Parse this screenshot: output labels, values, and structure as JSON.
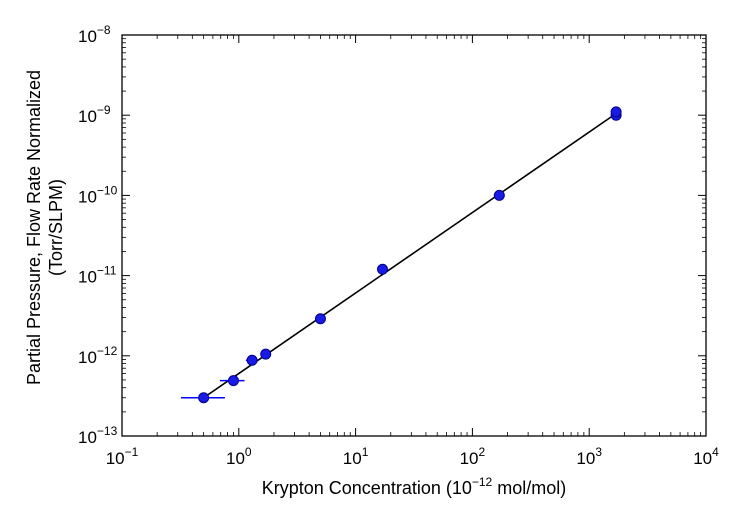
{
  "chart_data": {
    "type": "scatter",
    "xscale": "log",
    "yscale": "log",
    "xlim": [
      0.1,
      10000
    ],
    "ylim": [
      1e-13,
      1e-08
    ],
    "xlabel": {
      "prefix": "Krypton Concentration (10",
      "sup": "−12",
      "suffix": " mol/mol)"
    },
    "ylabel": {
      "line1": "Partial Pressure, Flow Rate Normalized",
      "line2": "(Torr/SLPM)"
    },
    "x_ticks": [
      {
        "value": 0.1,
        "base": "10",
        "exp": "−1"
      },
      {
        "value": 1,
        "base": "10",
        "exp": "0"
      },
      {
        "value": 10,
        "base": "10",
        "exp": "1"
      },
      {
        "value": 100,
        "base": "10",
        "exp": "2"
      },
      {
        "value": 1000,
        "base": "10",
        "exp": "3"
      },
      {
        "value": 10000,
        "base": "10",
        "exp": "4"
      }
    ],
    "y_ticks": [
      {
        "value": 1e-13,
        "base": "10",
        "exp": "−13"
      },
      {
        "value": 1e-12,
        "base": "10",
        "exp": "−12"
      },
      {
        "value": 1e-11,
        "base": "10",
        "exp": "−11"
      },
      {
        "value": 1e-10,
        "base": "10",
        "exp": "−10"
      },
      {
        "value": 1e-09,
        "base": "10",
        "exp": "−9"
      },
      {
        "value": 1e-08,
        "base": "10",
        "exp": "−8"
      }
    ],
    "grid": false,
    "points": [
      {
        "x": 0.5,
        "y": 3e-13,
        "xerr": [
          0.32,
          0.76
        ]
      },
      {
        "x": 0.9,
        "y": 4.9e-13,
        "xerr": [
          0.69,
          1.12
        ]
      },
      {
        "x": 1.3,
        "y": 8.8e-13,
        "xerr": [
          1.15,
          1.45
        ]
      },
      {
        "x": 1.7,
        "y": 1.05e-12
      },
      {
        "x": 5.0,
        "y": 2.9e-12
      },
      {
        "x": 17,
        "y": 1.2e-11,
        "yerr": [
          1.07e-11,
          1.33e-11
        ]
      },
      {
        "x": 170,
        "y": 1e-10
      },
      {
        "x": 1700,
        "y": 1e-09
      },
      {
        "x": 1700,
        "y": 1.1e-09
      }
    ],
    "fit_line": [
      {
        "x": 0.5,
        "y": 3e-13
      },
      {
        "x": 1700,
        "y": 1.05e-09
      }
    ],
    "marker_color": "#1a1ae6",
    "marker_edge_color": "#00008b",
    "errorbar_color": "#0000ff",
    "line_color": "#000000"
  }
}
